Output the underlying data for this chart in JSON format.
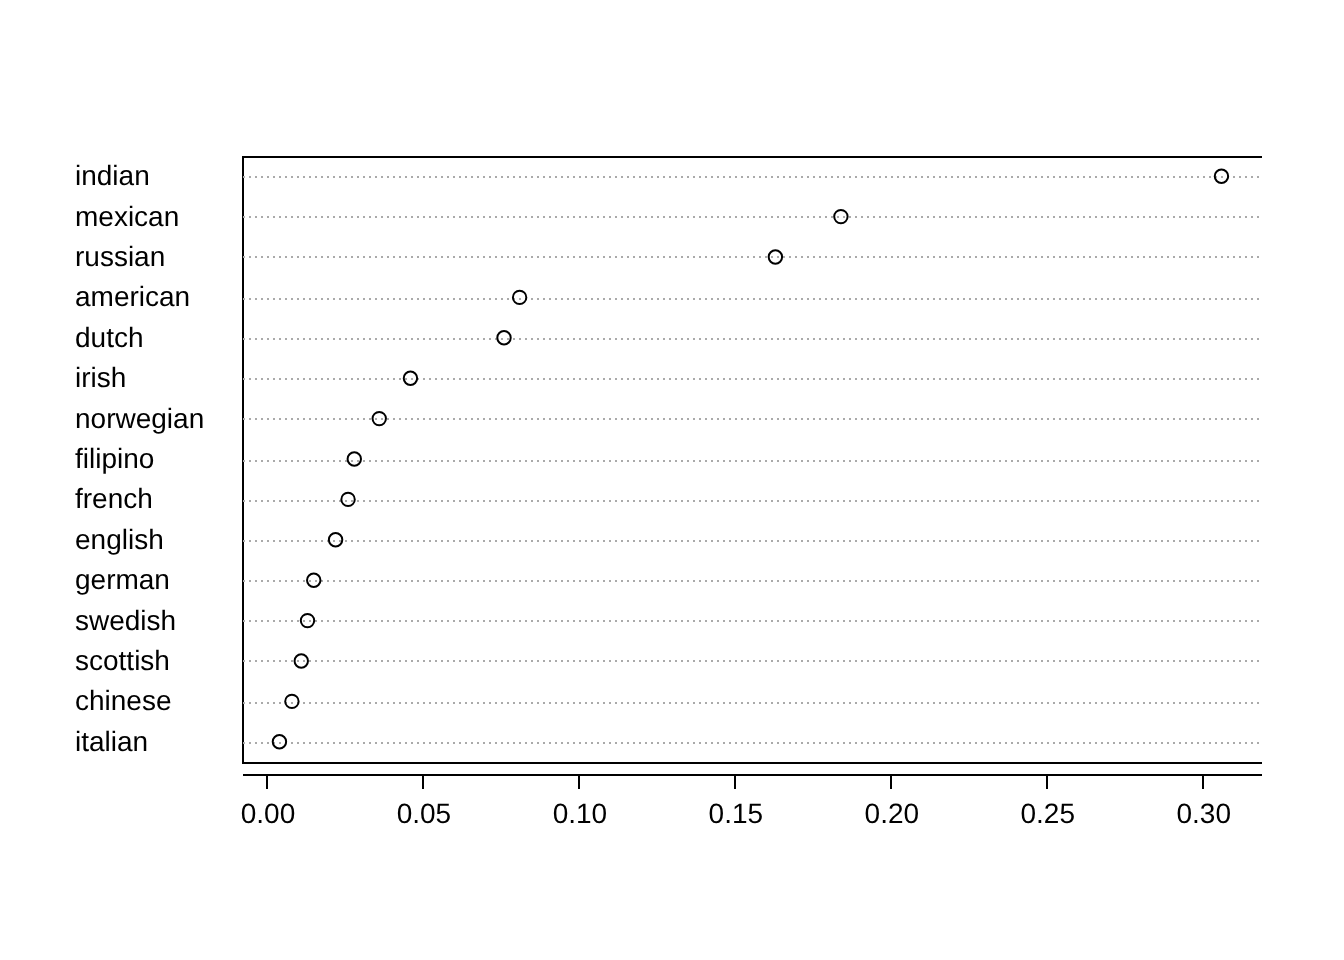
{
  "chart_data": {
    "type": "scatter",
    "categories": [
      "indian",
      "mexican",
      "russian",
      "american",
      "dutch",
      "irish",
      "norwegian",
      "filipino",
      "french",
      "english",
      "german",
      "swedish",
      "scottish",
      "chinese",
      "italian"
    ],
    "values": [
      0.306,
      0.184,
      0.163,
      0.081,
      0.076,
      0.046,
      0.036,
      0.028,
      0.026,
      0.022,
      0.015,
      0.013,
      0.011,
      0.008,
      0.004
    ],
    "color": "#000000",
    "xlim": [
      -0.008,
      0.319
    ],
    "xticks": [
      {
        "value": 0,
        "label": "0.00"
      },
      {
        "value": 0.05,
        "label": "0.05"
      },
      {
        "value": 0.1,
        "label": "0.10"
      },
      {
        "value": 0.15,
        "label": "0.15"
      },
      {
        "value": 0.2,
        "label": "0.20"
      },
      {
        "value": 0.25,
        "label": "0.25"
      },
      {
        "value": 0.3,
        "label": "0.30"
      }
    ],
    "grid": "y",
    "marker": "circle",
    "orientation": "horizontal"
  }
}
